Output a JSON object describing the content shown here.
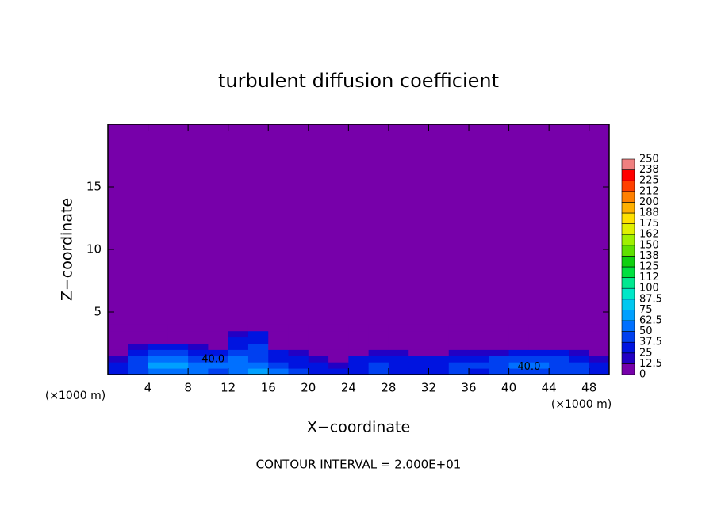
{
  "chart_data": {
    "type": "contour",
    "title": "turbulent diffusion coefficient",
    "x_label": "X−coordinate",
    "y_label": "Z−coordinate",
    "x_unit": "(×1000 m)",
    "footer": "CONTOUR INTERVAL = 2.000E+01",
    "xlim": [
      0,
      50
    ],
    "ylim": [
      0,
      20
    ],
    "xticks": [
      4,
      8,
      12,
      16,
      20,
      24,
      28,
      32,
      36,
      40,
      44,
      48
    ],
    "yticks": [
      5,
      10,
      15
    ],
    "x": [
      1,
      3,
      5,
      7,
      9,
      11,
      13,
      15,
      17,
      19,
      21,
      23,
      25,
      27,
      29,
      31,
      33,
      35,
      37,
      39,
      41,
      43,
      45,
      47,
      49
    ],
    "y": [
      0.25,
      0.75,
      1.25,
      1.75,
      2.25,
      2.75,
      3.25,
      3.75
    ],
    "z": [
      [
        30,
        45,
        55,
        60,
        50,
        45,
        55,
        65,
        50,
        40,
        30,
        25,
        35,
        40,
        35,
        30,
        25,
        40,
        35,
        40,
        45,
        45,
        45,
        40,
        30
      ],
      [
        25,
        45,
        65,
        70,
        55,
        50,
        60,
        55,
        40,
        35,
        25,
        20,
        30,
        40,
        35,
        30,
        30,
        45,
        40,
        45,
        50,
        50,
        45,
        40,
        25
      ],
      [
        15,
        40,
        55,
        60,
        45,
        40,
        50,
        45,
        35,
        25,
        15,
        10,
        25,
        30,
        30,
        25,
        25,
        35,
        30,
        40,
        40,
        40,
        40,
        35,
        20
      ],
      [
        5,
        30,
        40,
        45,
        35,
        30,
        40,
        40,
        25,
        15,
        5,
        5,
        10,
        15,
        15,
        10,
        10,
        15,
        15,
        20,
        25,
        30,
        30,
        20,
        10
      ],
      [
        0,
        15,
        30,
        30,
        15,
        10,
        35,
        40,
        10,
        10,
        0,
        0,
        0,
        5,
        0,
        0,
        0,
        0,
        0,
        0,
        5,
        5,
        5,
        0,
        0
      ],
      [
        0,
        0,
        5,
        5,
        0,
        0,
        30,
        35,
        0,
        0,
        0,
        0,
        0,
        0,
        0,
        0,
        0,
        0,
        0,
        0,
        0,
        0,
        0,
        0,
        0
      ],
      [
        0,
        0,
        0,
        0,
        0,
        0,
        20,
        25,
        0,
        0,
        0,
        0,
        0,
        0,
        0,
        0,
        0,
        0,
        0,
        0,
        0,
        0,
        0,
        0,
        0
      ],
      [
        0,
        0,
        0,
        0,
        0,
        0,
        5,
        10,
        0,
        0,
        0,
        0,
        0,
        0,
        0,
        0,
        0,
        0,
        0,
        0,
        0,
        0,
        0,
        0,
        0
      ]
    ],
    "levels": [
      0,
      12.5,
      25,
      37.5,
      50,
      62.5,
      75,
      87.5,
      100,
      112,
      125,
      138,
      150,
      162,
      175,
      188,
      200,
      212,
      225,
      238,
      250
    ],
    "colors": [
      "#7700aa",
      "#2200c4",
      "#0014e0",
      "#0040f0",
      "#0070ff",
      "#00a0ff",
      "#00c8f0",
      "#00e8c8",
      "#00e890",
      "#00e040",
      "#10d010",
      "#60e000",
      "#a0f000",
      "#e0f000",
      "#ffe000",
      "#ffb000",
      "#ff8000",
      "#ff4000",
      "#ff0000",
      "#f08080"
    ],
    "contour_labels": [
      {
        "x": 10.5,
        "y": 1.2,
        "value": 40,
        "label": "40.0"
      },
      {
        "x": 42,
        "y": 0.6,
        "value": 40,
        "label": "40.0"
      }
    ]
  }
}
